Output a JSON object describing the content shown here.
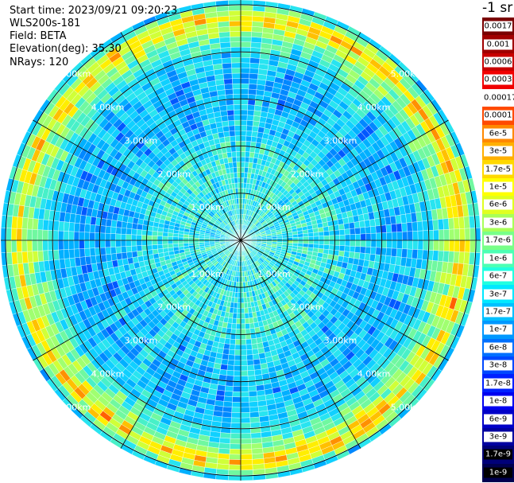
{
  "header": {
    "start_time": "Start time: 2023/09/21 09:20:23",
    "device": "WLS200s-181",
    "field": "Field: BETA",
    "elevation": "Elevation(deg): 35.30",
    "nrays": "NRays: 120"
  },
  "units_label": "-1 sr",
  "chart_data": {
    "type": "polar-ppi",
    "rays": 120,
    "range_rings_km": [
      1,
      2,
      3,
      4,
      5
    ],
    "ring_labels": [
      "1.00km",
      "2.00km",
      "3.00km",
      "4.00km",
      "5.00km"
    ],
    "max_range_km": 5.1,
    "spokes_deg": [
      0,
      30,
      60,
      90,
      120,
      150,
      180,
      210,
      240,
      270,
      300,
      330
    ],
    "colorbar": {
      "labels": [
        "0.0017",
        "0.001",
        "0.0006",
        "0.0003",
        "0.00017",
        "0.0001",
        "6e-5",
        "3e-5",
        "1.7e-5",
        "1e-5",
        "6e-6",
        "3e-6",
        "1.7e-6",
        "1e-6",
        "6e-7",
        "3e-7",
        "1.7e-7",
        "1e-7",
        "6e-8",
        "3e-8",
        "1.7e-8",
        "1e-8",
        "6e-9",
        "3e-9",
        "1.7e-9",
        "1e-9"
      ],
      "colors": [
        "#7a0000",
        "#a00000",
        "#c80000",
        "#f00000",
        "#ffffff",
        "#ff4a00",
        "#ff8800",
        "#ffb000",
        "#ffd800",
        "#ffff00",
        "#e0ff20",
        "#a8ff58",
        "#78ff88",
        "#4cffb4",
        "#20ffe0",
        "#00e8ff",
        "#00c0ff",
        "#0098ff",
        "#0070ff",
        "#0048ff",
        "#0020ff",
        "#0000f0",
        "#0000c8",
        "#0000a0",
        "#000078",
        "#000050"
      ]
    },
    "profile_by_range_km": [
      {
        "r": 0.0,
        "level": 16
      },
      {
        "r": 2.0,
        "level": 16
      },
      {
        "r": 2.4,
        "level": 18
      },
      {
        "r": 3.5,
        "level": 19
      },
      {
        "r": 4.0,
        "level": 17
      },
      {
        "r": 4.4,
        "level": 13
      },
      {
        "r": 4.75,
        "level": 8
      },
      {
        "r": 4.95,
        "level": 14
      },
      {
        "r": 5.1,
        "level": 19
      }
    ]
  }
}
